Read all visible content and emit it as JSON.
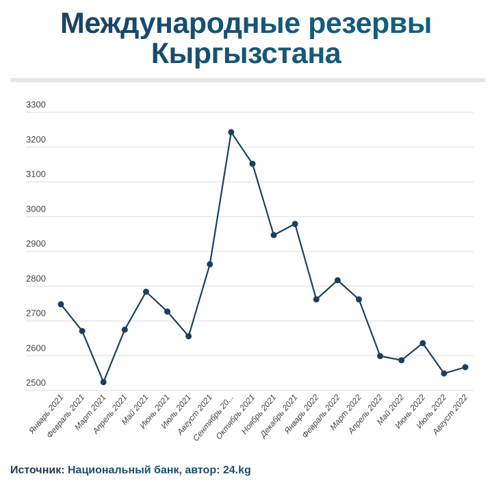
{
  "title_line1": "Международные резервы",
  "title_line2": "Кыргызстана",
  "footer": {
    "label": "Источник:",
    "text": "Национальный банк, автор: 24.kg"
  },
  "colors": {
    "line": "#1b3f5e",
    "grid": "#dcdcdc",
    "axis_text": "#444444"
  },
  "chart_data": {
    "type": "line",
    "title": "Международные резервы Кыргызстана",
    "xlabel": "",
    "ylabel": "",
    "ylim": [
      2500,
      3300
    ],
    "yticks": [
      2500,
      2600,
      2700,
      2800,
      2900,
      3000,
      3100,
      3200,
      3300
    ],
    "grid": true,
    "categories": [
      "Январь 2021",
      "Февраль 2021",
      "Март 2021",
      "Апрель 2021",
      "Май 2021",
      "Июнь 2021",
      "Июль 2021",
      "Август 2021",
      "Сентябрь 20...",
      "Октябрь 2021",
      "Ноябрь 2021",
      "Декабрь 2021",
      "Январь 2022",
      "Февраль 2022",
      "Март 2022",
      "Апрель 2022",
      "Май 2022",
      "Июнь 2022",
      "Июль 2022",
      "Август 2022"
    ],
    "series": [
      {
        "name": "Международные резервы",
        "values": [
          2748,
          2671,
          2524,
          2675,
          2784,
          2727,
          2656,
          2863,
          3243,
          3152,
          2947,
          2979,
          2762,
          2817,
          2762,
          2599,
          2587,
          2636,
          2549,
          2567
        ]
      }
    ]
  }
}
